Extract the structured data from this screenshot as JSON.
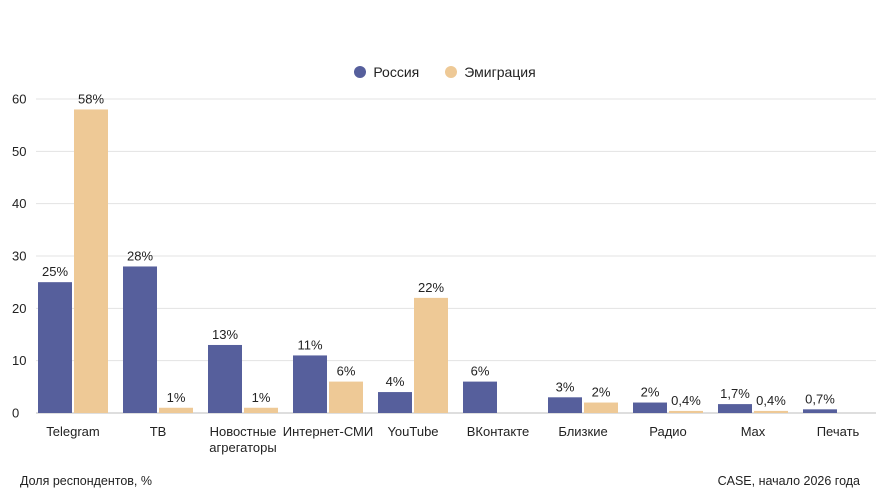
{
  "chart_data": {
    "type": "bar",
    "categories": [
      "Telegram",
      "ТВ",
      "Новостные агрегаторы",
      "Интернет-СМИ",
      "YouTube",
      "ВКонтакте",
      "Близкие",
      "Радио",
      "Max",
      "Печать"
    ],
    "category_lines": [
      [
        "Telegram"
      ],
      [
        "ТВ"
      ],
      [
        "Новостные",
        "агрегаторы"
      ],
      [
        "Интернет-СМИ"
      ],
      [
        "YouTube"
      ],
      [
        "ВКонтакте"
      ],
      [
        "Близкие"
      ],
      [
        "Радио"
      ],
      [
        "Max"
      ],
      [
        "Печать"
      ]
    ],
    "series": [
      {
        "name": "Россия",
        "color": "#565f9c",
        "values": [
          25,
          28,
          13,
          11,
          4,
          6,
          3,
          2,
          1.7,
          0.7
        ],
        "labels": [
          "25%",
          "28%",
          "13%",
          "11%",
          "4%",
          "6%",
          "3%",
          "2%",
          "1,7%",
          "0,7%"
        ]
      },
      {
        "name": "Эмиграция",
        "color": "#eec996",
        "values": [
          58,
          1,
          1,
          6,
          22,
          null,
          2,
          0.4,
          0.4,
          null
        ],
        "labels": [
          "58%",
          "1%",
          "1%",
          "6%",
          "22%",
          null,
          "2%",
          "0,4%",
          "0,4%",
          null
        ]
      }
    ],
    "ylim": [
      0,
      60
    ],
    "yticks": [
      0,
      10,
      20,
      30,
      40,
      50,
      60
    ],
    "grid": true,
    "legend_position": "top-center"
  },
  "footer": {
    "left": "Доля респондентов, %",
    "right": "CASE, начало 2026 года"
  }
}
